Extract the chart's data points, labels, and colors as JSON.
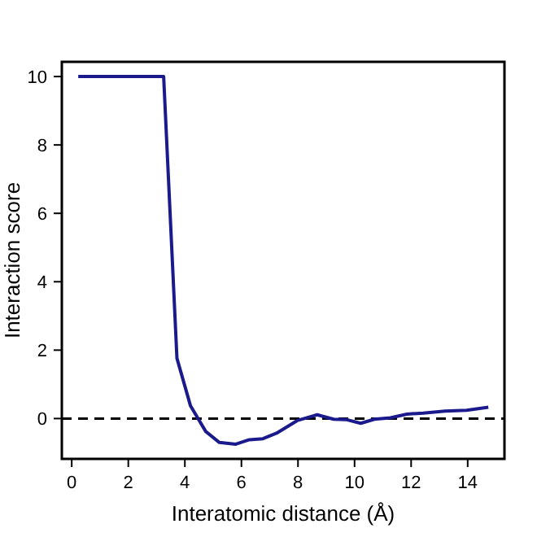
{
  "chart_data": {
    "type": "line",
    "xlabel": "Interatomic distance (Å)",
    "ylabel": "Interaction score",
    "xlim": [
      -0.35,
      15.3
    ],
    "ylim": [
      -1.18,
      10.43
    ],
    "xticks": [
      0,
      2,
      4,
      6,
      8,
      10,
      12,
      14
    ],
    "yticks": [
      0,
      2,
      4,
      6,
      8,
      10
    ],
    "grid": false,
    "series": [
      {
        "color": "#1a1a8c",
        "x": [
          0.23,
          3.25,
          3.72,
          4.2,
          4.74,
          5.22,
          5.8,
          6.28,
          6.76,
          7.24,
          7.97,
          8.68,
          9.26,
          9.7,
          10.22,
          10.7,
          11.27,
          11.85,
          12.43,
          13.2,
          13.96,
          14.73
        ],
        "values": [
          10,
          10,
          1.76,
          0.37,
          -0.38,
          -0.7,
          -0.75,
          -0.62,
          -0.59,
          -0.43,
          -0.06,
          0.11,
          -0.02,
          -0.03,
          -0.14,
          -0.02,
          0.02,
          0.13,
          0.16,
          0.22,
          0.24,
          0.33
        ]
      }
    ],
    "ref_lines": [
      {
        "axis": "y",
        "value": 0,
        "line_style": "dashed",
        "color": "#000000"
      }
    ]
  }
}
